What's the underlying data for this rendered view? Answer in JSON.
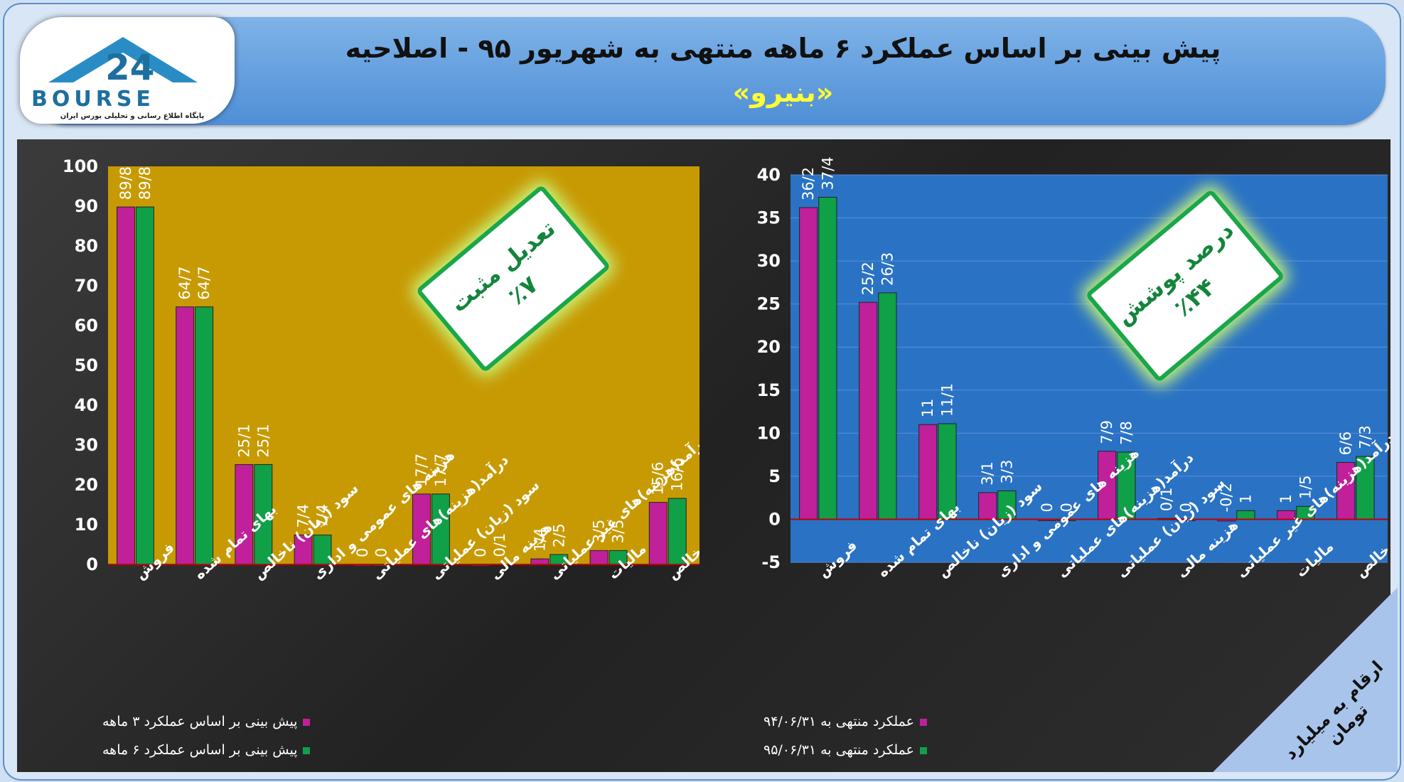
{
  "header": {
    "title": "پیش بینی بر اساس عملکرد ۶ ماهه منتهی به شهریور ۹۵ - اصلاحیه",
    "subtitle": "«بنیرو»",
    "logo_text": "BOURSE",
    "logo_number": "24",
    "logo_caption": "پایگاه اطلاع رسانی و تحلیلی بورس ایران"
  },
  "unit_label": "ارقام به میلیارد تومان",
  "colors": {
    "magenta": "#c0209a",
    "green": "#10a048",
    "left_bg": "#c79a04",
    "right_bg": "#2a72c4",
    "axis_line": "#c00000"
  },
  "badges": {
    "left": {
      "title": "تعدیل مثبت",
      "value": "٪۷"
    },
    "right": {
      "title": "درصد پوشش",
      "value": "٪۴۴"
    }
  },
  "chart_data": [
    {
      "type": "bar",
      "categories": [
        "فروش",
        "بهای تمام شده",
        "سود (زیان) ناخالص",
        "هزینه های عمومی و اداری",
        "درآمد(هزینه)های عملیاتی",
        "سود (زیان) عملیاتی",
        "هزینه مالی",
        "درآمد(هزینه)های غیر عملیاتی",
        "مالیات",
        "سود خالص"
      ],
      "series": [
        {
          "name": "پیش بینی بر اساس عملکرد ۳ ماهه",
          "values": [
            89.8,
            64.7,
            25.1,
            7.4,
            0,
            17.7,
            0,
            1.4,
            3.5,
            15.6
          ],
          "labels": [
            "89/8",
            "64/7",
            "25/1",
            "7/4",
            "0",
            "17/7",
            "0",
            "1/4",
            "3/5",
            "15/6"
          ]
        },
        {
          "name": "پیش بینی بر اساس عملکرد ۶ ماهه",
          "values": [
            89.8,
            64.7,
            25.1,
            7.4,
            0,
            17.7,
            0.1,
            2.5,
            3.5,
            16.6
          ],
          "labels": [
            "89/8",
            "64/7",
            "25/1",
            "7/4",
            "0",
            "17/7",
            "0/1",
            "2/5",
            "3/5",
            "16/6"
          ]
        }
      ],
      "ylim": [
        0,
        100
      ],
      "yticks": [
        0,
        10,
        20,
        30,
        40,
        50,
        60,
        70,
        80,
        90,
        100
      ],
      "grid": false,
      "legend": "bottom"
    },
    {
      "type": "bar",
      "categories": [
        "فروش",
        "بهای تمام شده",
        "سود (زیان) ناخالص",
        "هزینه های عمومی و اداری",
        "درآمد(هزینه)های عملیاتی",
        "سود (زیان) عملیاتی",
        "هزینه مالی",
        "درآمد(هزینه)های غیر عملیاتی",
        "مالیات",
        "سود خالص"
      ],
      "series": [
        {
          "name": "عملکرد منتهی به ۹۴/۰۶/۳۱",
          "values": [
            36.2,
            25.2,
            11,
            3.1,
            0,
            7.9,
            0.1,
            -0.2,
            1,
            6.6
          ],
          "labels": [
            "36/2",
            "25/2",
            "11",
            "3/1",
            "0",
            "7/9",
            "0/1",
            "-0/2",
            "1",
            "6/6"
          ]
        },
        {
          "name": "عملکرد منتهی به ۹۵/۰۶/۳۱",
          "values": [
            37.4,
            26.3,
            11.1,
            3.3,
            0,
            7.8,
            0,
            1,
            1.5,
            7.3
          ],
          "labels": [
            "37/4",
            "26/3",
            "11/1",
            "3/3",
            "0",
            "7/8",
            "0",
            "1",
            "1/5",
            "7/3"
          ]
        }
      ],
      "ylim": [
        -5,
        40
      ],
      "yticks": [
        -5,
        0,
        5,
        10,
        15,
        20,
        25,
        30,
        35,
        40
      ],
      "grid": true,
      "legend": "bottom"
    }
  ]
}
